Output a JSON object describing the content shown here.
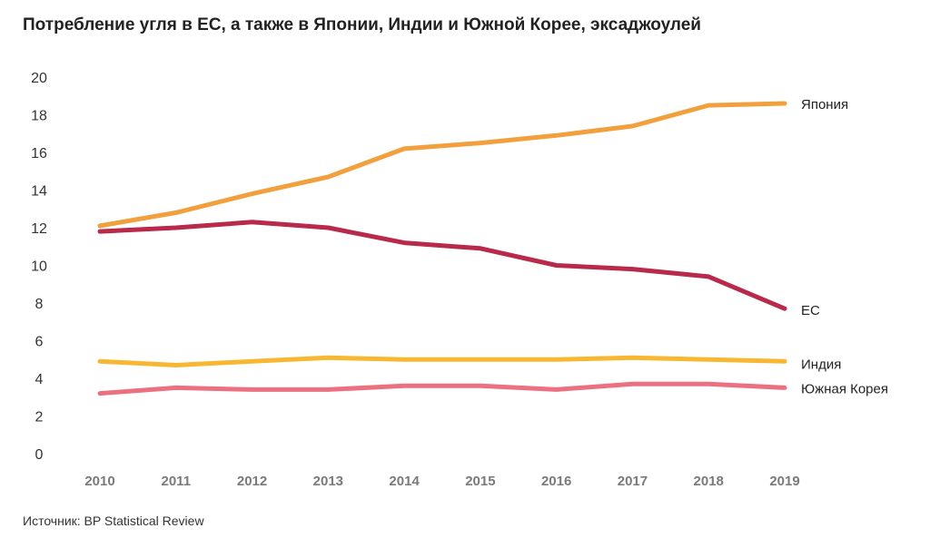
{
  "chart_data": {
    "type": "line",
    "title": "Потребление угля в ЕС, а также в Японии, Индии и Южной Корее, эксаджоулей",
    "xlabel": "",
    "ylabel": "",
    "x": [
      "2010",
      "2011",
      "2012",
      "2013",
      "2014",
      "2015",
      "2016",
      "2017",
      "2018",
      "2019"
    ],
    "ylim": [
      0,
      20
    ],
    "yticks": [
      "0",
      "2",
      "4",
      "6",
      "8",
      "10",
      "12",
      "14",
      "16",
      "18",
      "20"
    ],
    "grid": false,
    "legend": "inline labels at line ends (right)",
    "series": [
      {
        "key": "japan",
        "name": "Япония",
        "color": "#F2A03D",
        "values": [
          12.1,
          12.8,
          13.8,
          14.7,
          16.2,
          16.5,
          16.9,
          17.4,
          18.5,
          18.6
        ]
      },
      {
        "key": "eu",
        "name": "ЕС",
        "color": "#B8294A",
        "values": [
          11.8,
          12.0,
          12.3,
          12.0,
          11.2,
          10.9,
          10.0,
          9.8,
          9.4,
          7.7
        ]
      },
      {
        "key": "india",
        "name": "Индия",
        "color": "#F7B731",
        "values": [
          4.9,
          4.7,
          4.9,
          5.1,
          5.0,
          5.0,
          5.0,
          5.1,
          5.0,
          4.9
        ]
      },
      {
        "key": "korea",
        "name": "Южная Корея",
        "color": "#EC7080",
        "values": [
          3.2,
          3.5,
          3.4,
          3.4,
          3.6,
          3.6,
          3.4,
          3.7,
          3.7,
          3.5
        ]
      }
    ]
  },
  "source": "Источник: BP Statistical Review"
}
